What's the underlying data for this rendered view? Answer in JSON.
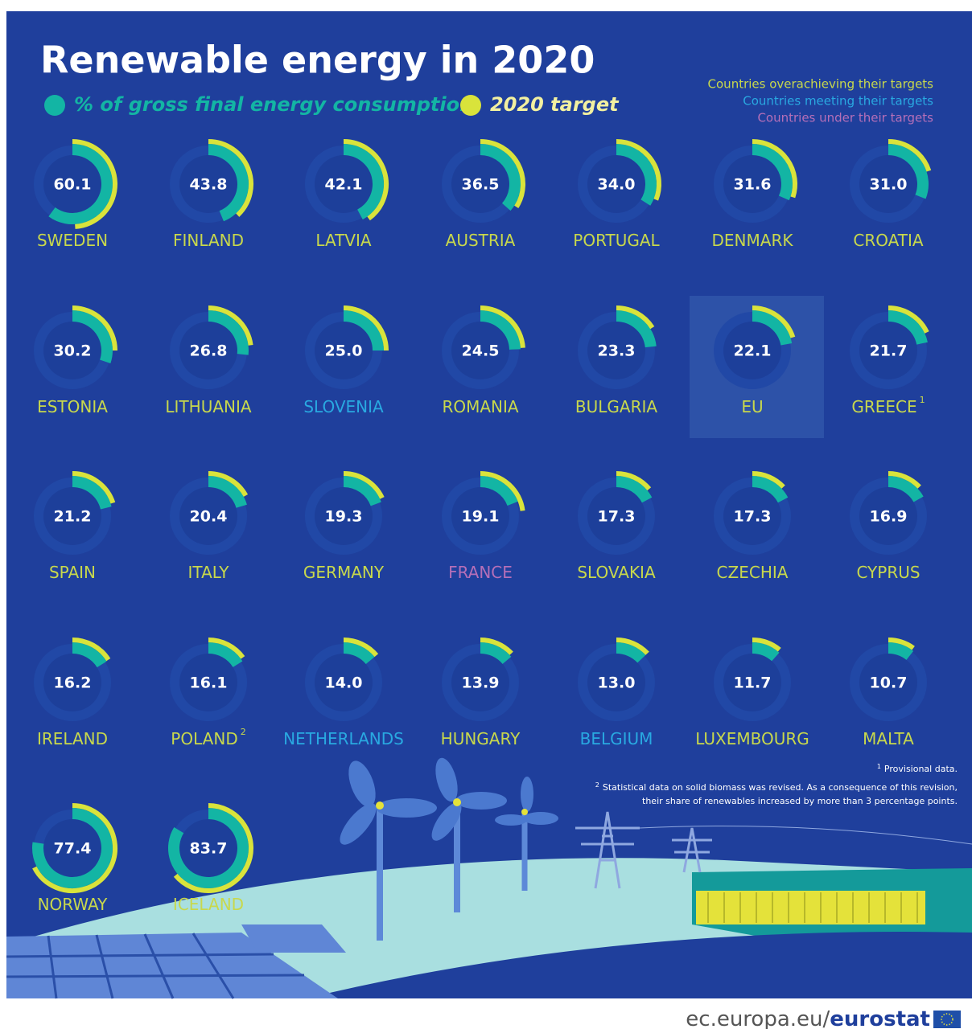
{
  "chart_data": {
    "type": "donut",
    "title": "Renewable energy in 2020",
    "series": [
      {
        "name": "% of gross final energy consumption",
        "color": "#13b5a4",
        "values": [
          60.1,
          43.8,
          42.1,
          36.5,
          34.0,
          31.6,
          31.0,
          30.2,
          26.8,
          25.0,
          24.5,
          23.3,
          22.1,
          21.7,
          21.2,
          20.4,
          19.3,
          19.1,
          17.3,
          17.3,
          16.9,
          16.2,
          16.1,
          14.0,
          13.9,
          13.0,
          11.7,
          10.7,
          77.4,
          83.7
        ]
      },
      {
        "name": "2020 target",
        "color": "#d9e33b",
        "values": [
          49,
          38,
          40,
          34,
          31,
          30,
          20,
          25,
          23,
          25,
          24,
          16,
          20,
          18,
          20,
          17,
          18,
          23,
          14,
          13,
          13,
          16,
          15,
          14,
          13,
          13,
          11,
          10,
          67.5,
          64
        ]
      }
    ],
    "value_labels": [
      "60.1",
      "43.8",
      "42.1",
      "36.5",
      "34.0",
      "31.6",
      "31.0",
      "30.2",
      "26.8",
      "25.0",
      "24.5",
      "23.3",
      "22.1",
      "21.7",
      "21.2",
      "20.4",
      "19.3",
      "19.1",
      "17.3",
      "17.3",
      "16.9",
      "16.2",
      "16.1",
      "14.0",
      "13.9",
      "13.0",
      "11.7",
      "10.7",
      "77.4",
      "83.7"
    ],
    "categories": [
      "SWEDEN",
      "FINLAND",
      "LATVIA",
      "AUSTRIA",
      "PORTUGAL",
      "DENMARK",
      "CROATIA",
      "ESTONIA",
      "LITHUANIA",
      "SLOVENIA",
      "ROMANIA",
      "BULGARIA",
      "EU",
      "GREECE",
      "SPAIN",
      "ITALY",
      "GERMANY",
      "FRANCE",
      "SLOVAKIA",
      "CZECHIA",
      "CYPRUS",
      "IRELAND",
      "POLAND",
      "NETHERLANDS",
      "HUNGARY",
      "BELGIUM",
      "LUXEMBOURG",
      "MALTA",
      "NORWAY",
      "ICELAND"
    ],
    "category_notes": [
      null,
      null,
      null,
      null,
      null,
      null,
      null,
      null,
      null,
      null,
      null,
      null,
      null,
      "1",
      null,
      null,
      null,
      null,
      null,
      null,
      null,
      null,
      "2",
      null,
      null,
      null,
      null,
      null,
      null,
      null
    ],
    "category_colors": [
      "#c8d84c",
      "#c8d84c",
      "#c8d84c",
      "#c8d84c",
      "#c8d84c",
      "#c8d84c",
      "#c8d84c",
      "#c8d84c",
      "#c8d84c",
      "#29a9e1",
      "#c8d84c",
      "#c8d84c",
      "#c8d84c",
      "#c8d84c",
      "#c8d84c",
      "#c8d84c",
      "#c8d84c",
      "#b56fb8",
      "#c8d84c",
      "#c8d84c",
      "#c8d84c",
      "#c8d84c",
      "#c8d84c",
      "#29a9e1",
      "#c8d84c",
      "#29a9e1",
      "#c8d84c",
      "#c8d84c",
      "#c8d84c",
      "#c8d84c"
    ],
    "highlight": "EU",
    "status_legend": [
      {
        "label": "Countries overachieving their targets",
        "color": "#c8d84c"
      },
      {
        "label": "Countries meeting their targets",
        "color": "#29a9e1"
      },
      {
        "label": "Countries under their targets",
        "color": "#b56fb8"
      }
    ],
    "footnotes": [
      {
        "mark": "1",
        "text": "Provisional data."
      },
      {
        "mark": "2",
        "text": "Statistical data on solid biomass was revised. As a consequence of this revision,",
        "text2": "their share of renewables increased by more than 3 percentage points."
      }
    ],
    "source": {
      "domain": "ec.europa.eu/",
      "brand": "eurostat"
    }
  }
}
